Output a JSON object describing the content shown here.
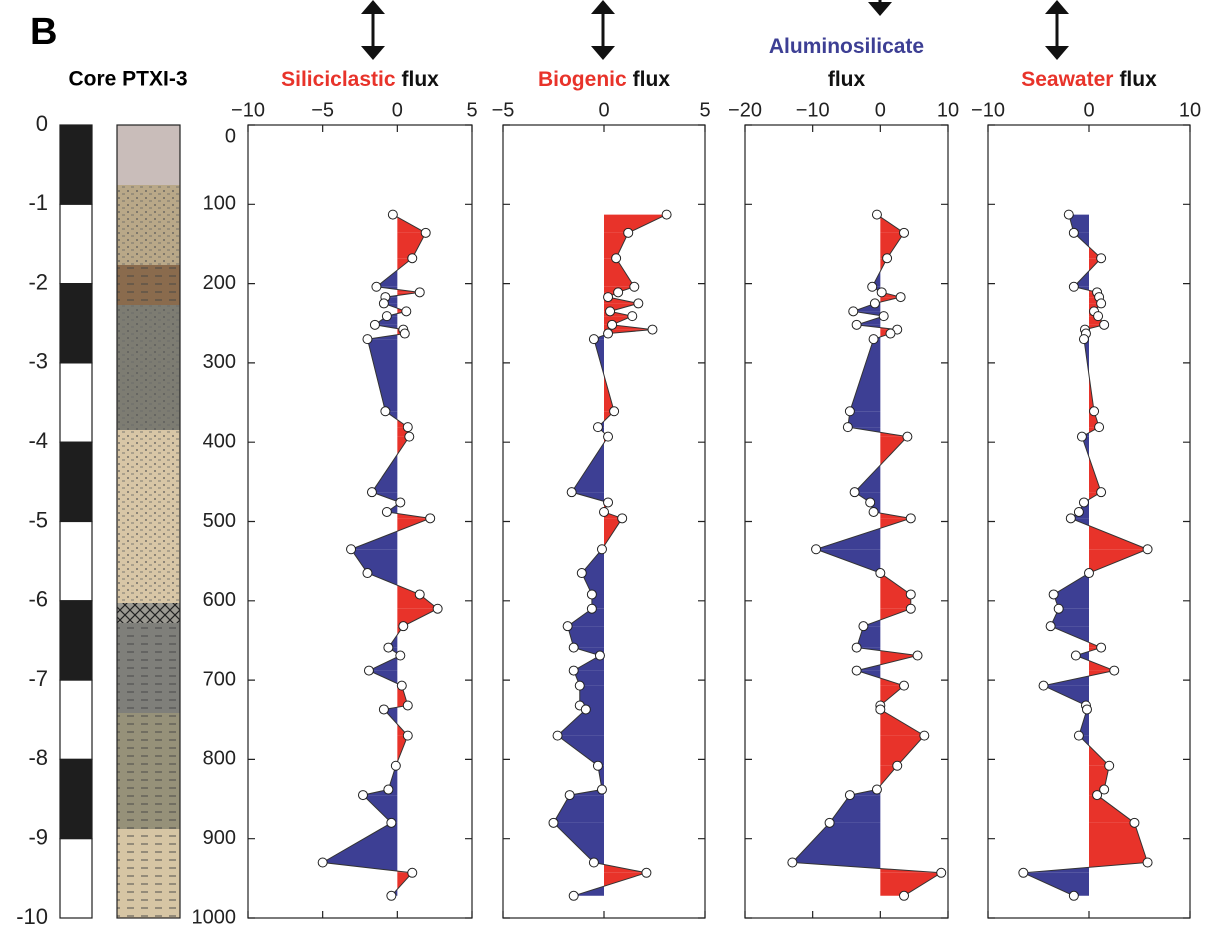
{
  "panel_label": "B",
  "core": {
    "title": "Core PTXI-3",
    "ylim": [
      0,
      -10
    ],
    "yticks": [
      0,
      -1,
      -2,
      -3,
      -4,
      -5,
      -6,
      -7,
      -8,
      -9,
      -10
    ]
  },
  "chart_data": [
    {
      "type": "area-line",
      "title": [
        [
          {
            "text": "Siliciclastic",
            "color": "#e8332a"
          },
          {
            "text": "flux",
            "color": "#111111"
          }
        ]
      ],
      "xlim": [
        -10,
        5
      ],
      "xticks": [
        {
          "value": -10,
          "label": "−10"
        },
        {
          "value": -5,
          "label": "−5"
        },
        0,
        5
      ],
      "ylim": [
        0,
        1000
      ],
      "yreverse": true,
      "yticks": [
        0,
        100,
        200,
        300,
        400,
        500,
        600,
        700,
        800,
        900,
        1000
      ],
      "positive_color": "#e8332a",
      "negative_color": "#3d3f94",
      "depth": [
        113,
        136,
        168,
        204,
        211,
        217,
        225,
        235,
        241,
        252,
        258,
        263,
        270,
        361,
        381,
        393,
        463,
        476,
        488,
        496,
        535,
        565,
        592,
        610,
        632,
        659,
        669,
        688,
        707,
        732,
        737,
        770,
        808,
        838,
        845,
        880,
        930,
        943,
        972
      ],
      "values": [
        -0.3,
        1.9,
        1.0,
        -1.4,
        1.5,
        -0.8,
        -0.9,
        0.6,
        -0.7,
        -1.5,
        0.4,
        0.5,
        -2.0,
        -0.8,
        0.7,
        0.8,
        -1.7,
        0.2,
        -0.7,
        2.2,
        -3.1,
        -2.0,
        1.5,
        2.7,
        0.4,
        -0.6,
        0.2,
        -1.9,
        0.3,
        0.7,
        -0.9,
        0.7,
        -0.1,
        -0.6,
        -2.3,
        -0.4,
        -5.0,
        1.0,
        -0.4
      ]
    },
    {
      "type": "area-line",
      "title": [
        [
          {
            "text": "Biogenic",
            "color": "#e8332a"
          },
          {
            "text": "flux",
            "color": "#111111"
          }
        ]
      ],
      "xlim": [
        -5,
        5
      ],
      "xticks": [
        {
          "value": -5,
          "label": "−5"
        },
        0,
        5
      ],
      "ylim": [
        0,
        1000
      ],
      "yreverse": true,
      "yticks": [
        0,
        100,
        200,
        300,
        400,
        500,
        600,
        700,
        800,
        900,
        1000
      ],
      "positive_color": "#e8332a",
      "negative_color": "#3d3f94",
      "depth": [
        113,
        136,
        168,
        204,
        211,
        217,
        225,
        235,
        241,
        252,
        258,
        263,
        270,
        361,
        381,
        393,
        463,
        476,
        488,
        496,
        535,
        565,
        592,
        610,
        632,
        659,
        669,
        688,
        707,
        732,
        737,
        770,
        808,
        838,
        845,
        880,
        930,
        943,
        972
      ],
      "values": [
        3.1,
        1.2,
        0.6,
        1.5,
        0.7,
        0.2,
        1.7,
        0.3,
        1.4,
        0.4,
        2.4,
        0.2,
        -0.5,
        0.5,
        -0.3,
        0.2,
        -1.6,
        0.2,
        0.0,
        0.9,
        -0.1,
        -1.1,
        -0.6,
        -0.6,
        -1.8,
        -1.5,
        -0.2,
        -1.5,
        -1.2,
        -1.2,
        -0.9,
        -2.3,
        -0.3,
        -0.1,
        -1.7,
        -2.5,
        -0.5,
        2.1,
        -1.5
      ]
    },
    {
      "type": "area-line",
      "title": [
        [
          {
            "text": "Aluminosilicate",
            "color": "#3d3f94"
          }
        ],
        [
          {
            "text": "flux",
            "color": "#111111"
          }
        ]
      ],
      "xlim": [
        -20,
        10
      ],
      "xticks": [
        {
          "value": -20,
          "label": "−20"
        },
        {
          "value": -10,
          "label": "−10"
        },
        0,
        10
      ],
      "ylim": [
        0,
        1000
      ],
      "yreverse": true,
      "yticks": [
        0,
        100,
        200,
        300,
        400,
        500,
        600,
        700,
        800,
        900,
        1000
      ],
      "positive_color": "#e8332a",
      "negative_color": "#3d3f94",
      "depth": [
        113,
        136,
        168,
        204,
        211,
        217,
        225,
        235,
        241,
        252,
        258,
        263,
        270,
        361,
        381,
        393,
        463,
        476,
        488,
        496,
        535,
        565,
        592,
        610,
        632,
        659,
        669,
        688,
        707,
        732,
        737,
        770,
        808,
        838,
        845,
        880,
        930,
        943,
        972
      ],
      "values": [
        -0.5,
        3.5,
        1.0,
        -1.2,
        0.2,
        3.0,
        -0.8,
        -4.0,
        0.5,
        -3.5,
        2.5,
        1.5,
        -1.0,
        -4.5,
        -4.8,
        4.0,
        -3.8,
        -1.5,
        -1.0,
        4.5,
        -9.5,
        0.0,
        4.5,
        4.5,
        -2.5,
        -3.5,
        5.5,
        -3.5,
        3.5,
        0.0,
        0.0,
        6.5,
        2.5,
        -0.5,
        -4.5,
        -7.5,
        -13.0,
        9.0,
        3.5
      ]
    },
    {
      "type": "area-line",
      "title": [
        [
          {
            "text": "Seawater",
            "color": "#e8332a"
          },
          {
            "text": "flux",
            "color": "#111111"
          }
        ]
      ],
      "xlim": [
        -10,
        10
      ],
      "xticks": [
        {
          "value": -10,
          "label": "−10"
        },
        0,
        10
      ],
      "ylim": [
        0,
        1000
      ],
      "yreverse": true,
      "yticks": [
        0,
        100,
        200,
        300,
        400,
        500,
        600,
        700,
        800,
        900,
        1000
      ],
      "positive_color": "#e8332a",
      "negative_color": "#3d3f94",
      "depth": [
        113,
        136,
        168,
        204,
        211,
        217,
        225,
        235,
        241,
        252,
        258,
        263,
        270,
        361,
        381,
        393,
        463,
        476,
        488,
        496,
        535,
        565,
        592,
        610,
        632,
        659,
        669,
        688,
        707,
        732,
        737,
        770,
        808,
        838,
        845,
        880,
        930,
        943,
        972
      ],
      "values": [
        -2.0,
        -1.5,
        1.2,
        -1.5,
        0.8,
        1.0,
        1.2,
        0.5,
        0.9,
        1.5,
        -0.4,
        -0.3,
        -0.5,
        0.5,
        1.0,
        -0.7,
        1.2,
        -0.5,
        -1.0,
        -1.8,
        5.8,
        0.0,
        -3.5,
        -3.0,
        -3.8,
        1.2,
        -1.3,
        2.5,
        -4.5,
        -0.3,
        -0.2,
        -1.0,
        2.0,
        1.5,
        0.8,
        4.5,
        5.8,
        -6.5,
        -1.5
      ]
    }
  ]
}
